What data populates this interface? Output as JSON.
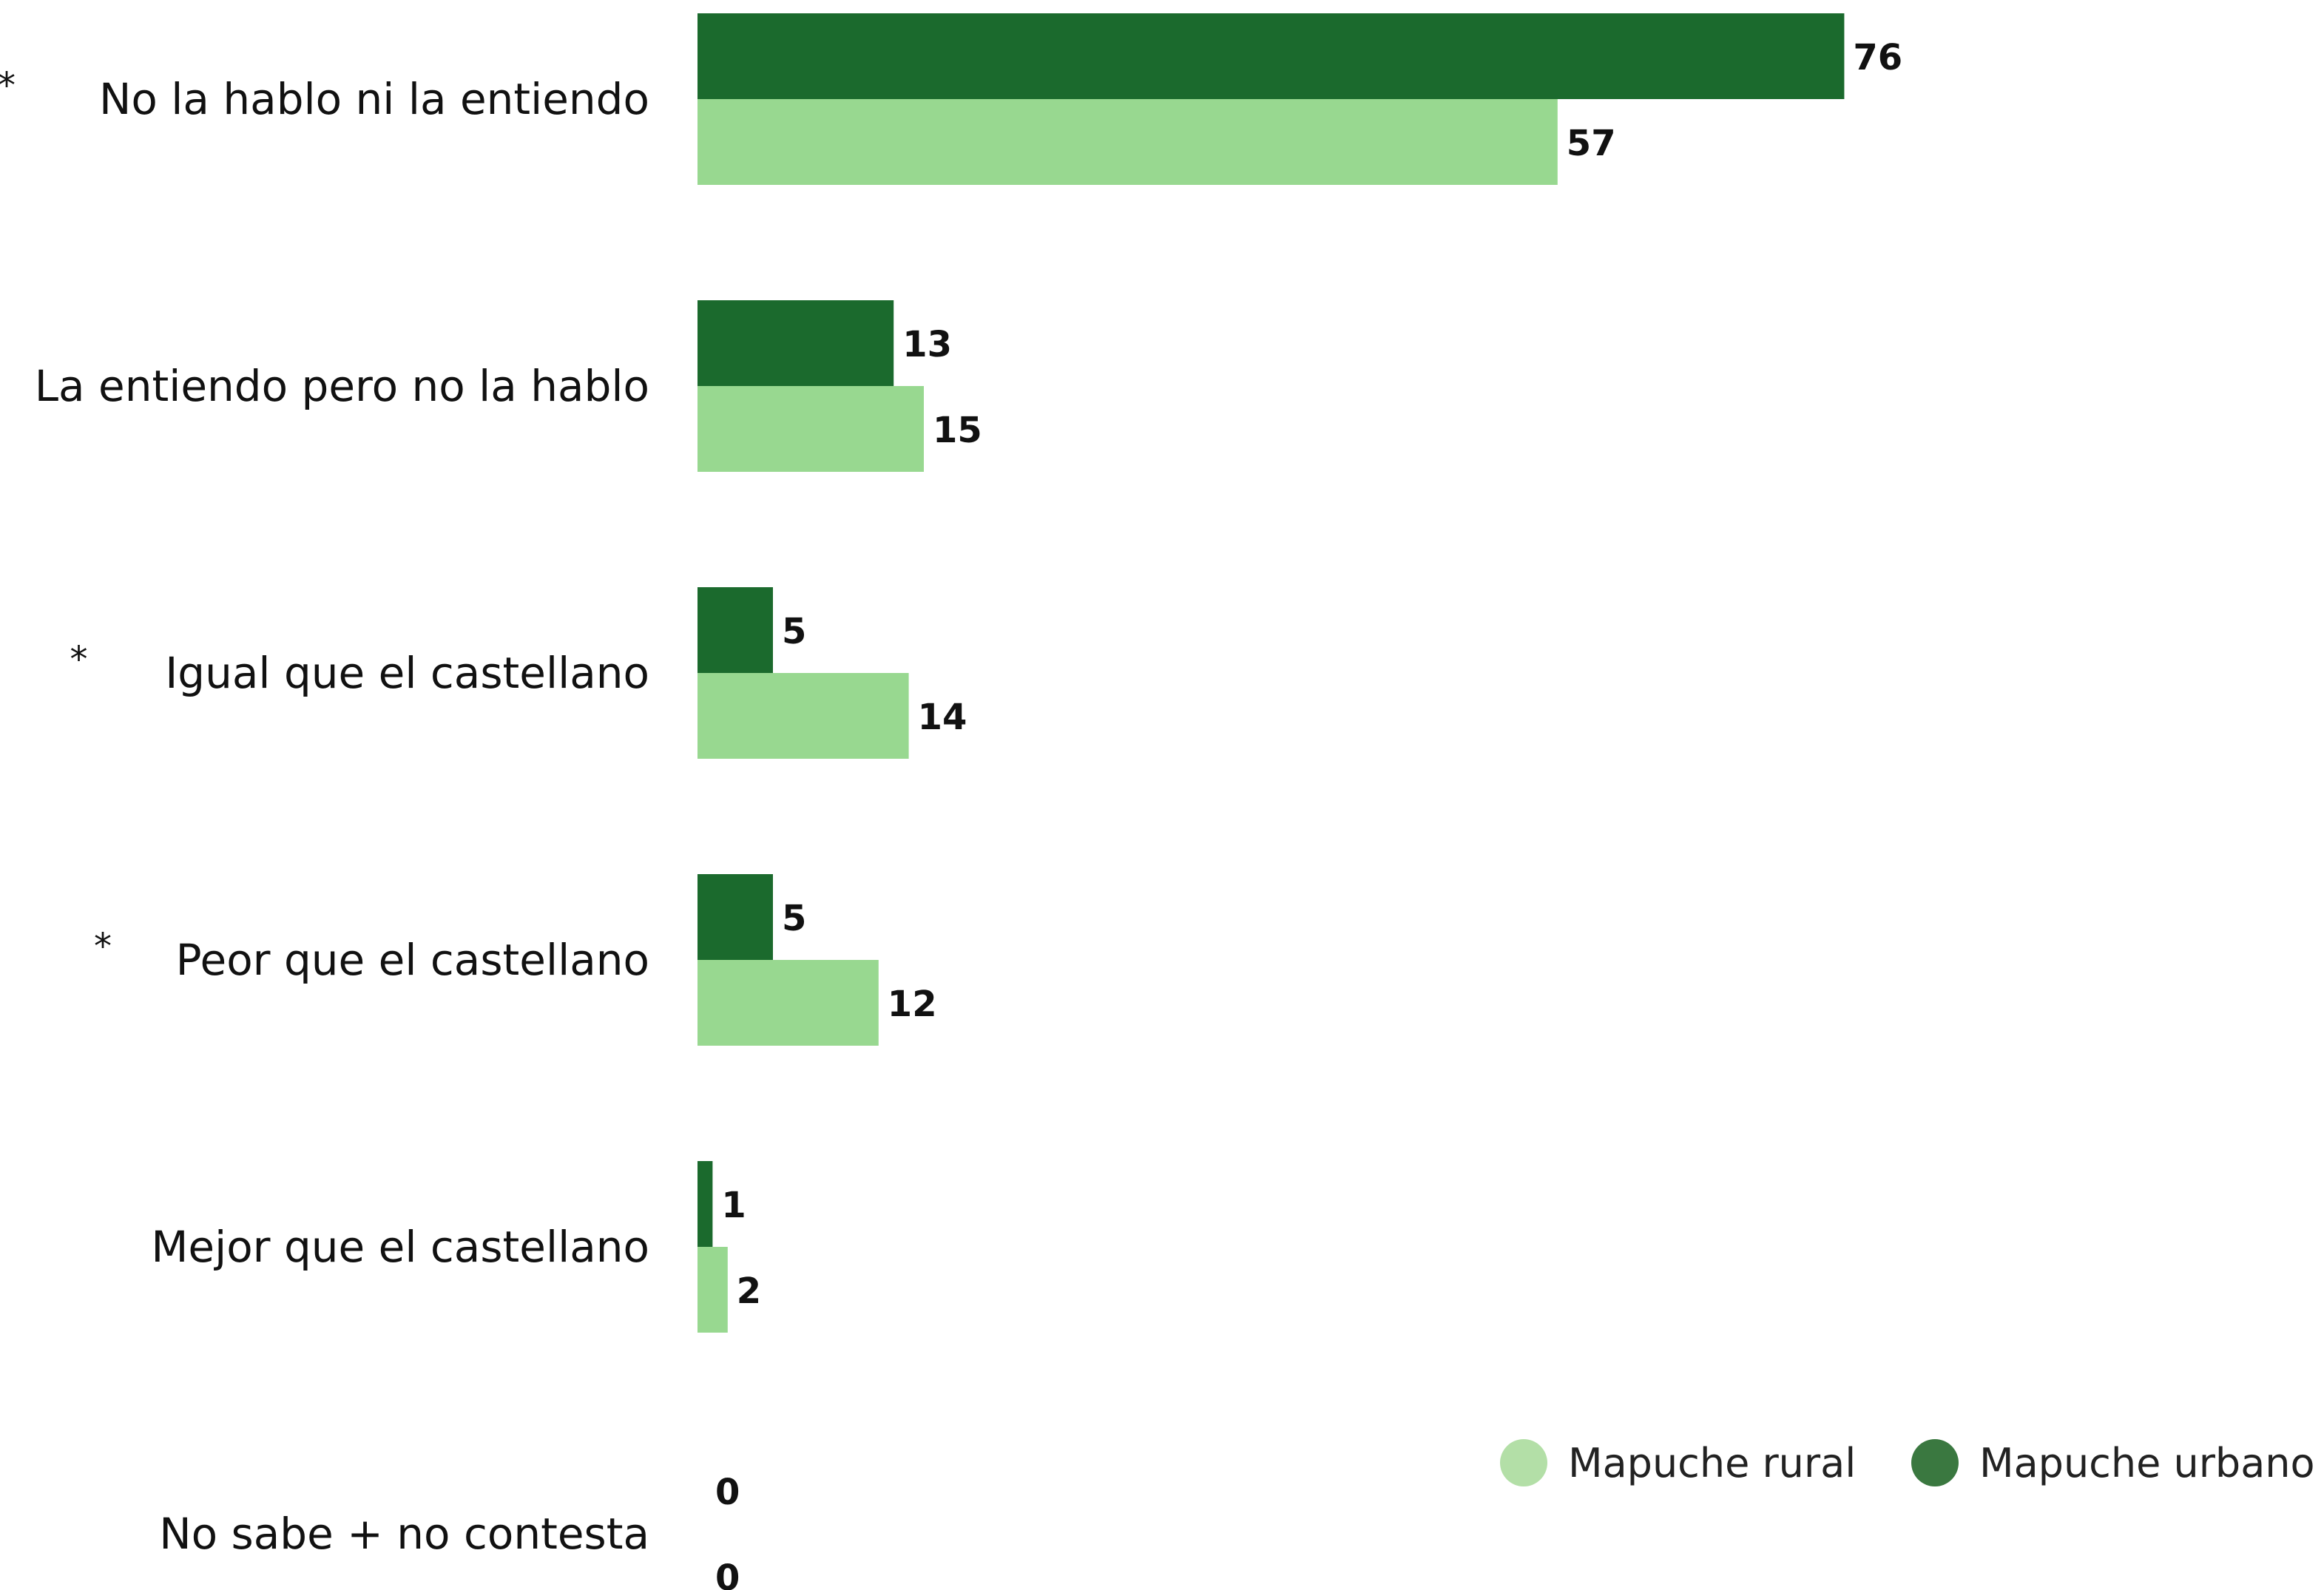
{
  "chart_data": {
    "type": "bar",
    "orientation": "horizontal",
    "categories": [
      "No la hablo ni la entiendo",
      "La entiendo pero no la hablo",
      "Igual que el castellano",
      "Peor que el castellano",
      "Mejor que el castellano",
      "No sabe + no contesta"
    ],
    "category_markers": [
      "*",
      "",
      "*",
      "*",
      "",
      ""
    ],
    "series": [
      {
        "name": "Mapuche urbano",
        "values": [
          76,
          13,
          5,
          5,
          1,
          0
        ],
        "color": "#1b6a2d"
      },
      {
        "name": "Mapuche rural",
        "values": [
          57,
          15,
          14,
          12,
          2,
          0
        ],
        "color": "#98d890"
      }
    ],
    "xlim": [
      0,
      80
    ],
    "grid": false,
    "legend": {
      "placement": "bottom-right",
      "entries": [
        {
          "name": "Mapuche rural",
          "color": "#b3dfa7"
        },
        {
          "name": "Mapuche urbano",
          "color": "#3a7840"
        }
      ]
    }
  }
}
